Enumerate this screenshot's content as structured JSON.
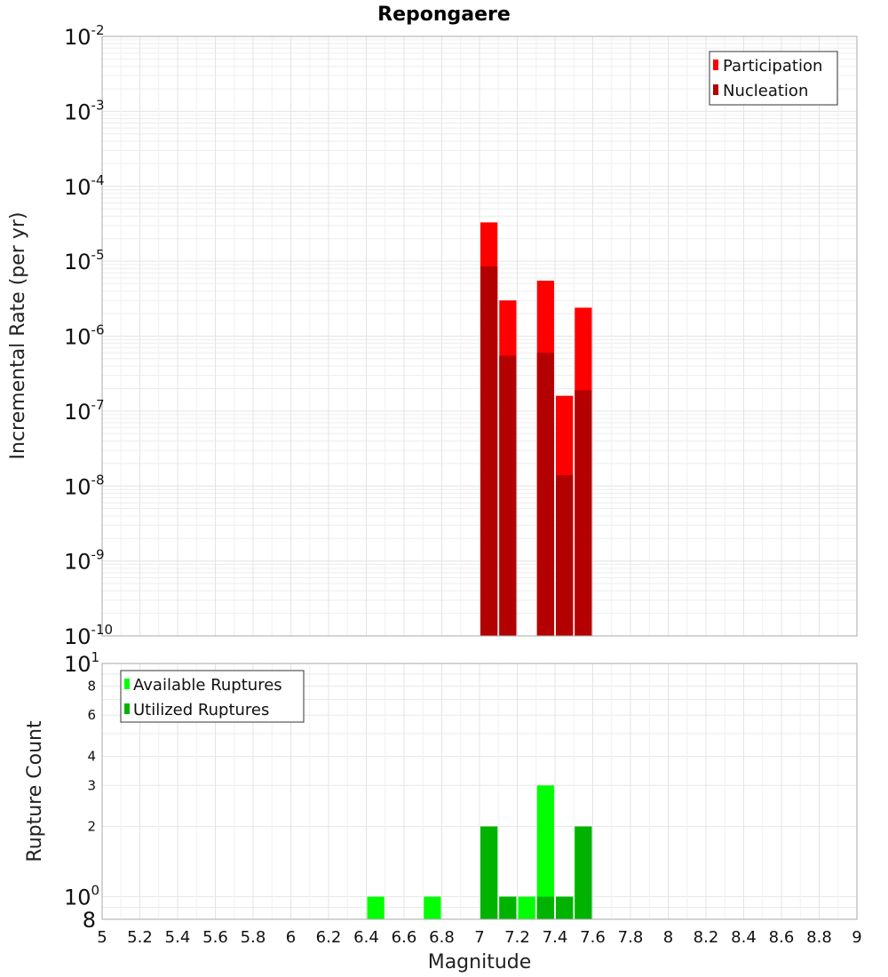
{
  "chart_data": [
    {
      "type": "bar",
      "title": "Repongaere",
      "ylabel": "Incremental Rate (per yr)",
      "yscale": "log",
      "ylim": [
        1e-10,
        0.01
      ],
      "y_tick_exponents": [
        -2,
        -3,
        -4,
        -5,
        -6,
        -7,
        -8,
        -9,
        -10
      ],
      "grid": true,
      "legend_position": "top-right",
      "series": [
        {
          "name": "Participation",
          "color": "#ff0000",
          "x": [
            7.05,
            7.15,
            7.35,
            7.45,
            7.55
          ],
          "values": [
            3.3e-05,
            3e-06,
            5.5e-06,
            1.6e-07,
            2.4e-06
          ]
        },
        {
          "name": "Nucleation",
          "color": "#b30000",
          "x": [
            7.05,
            7.15,
            7.35,
            7.45,
            7.55
          ],
          "values": [
            8.5e-06,
            5.5e-07,
            6e-07,
            1.4e-08,
            1.9e-07
          ]
        }
      ]
    },
    {
      "type": "bar",
      "ylabel": "Rupture Count",
      "xlabel": "Magnitude",
      "yscale": "log",
      "ylim": [
        0.8,
        10
      ],
      "y_tick_major": {
        "base": "10",
        "exps": [
          "1",
          "0"
        ]
      },
      "y_tick_minor": [
        "8",
        "6",
        "4",
        "3",
        "2"
      ],
      "y_tick_bottom": "8",
      "x_ticks": [
        "5",
        "5.2",
        "5.4",
        "5.6",
        "5.8",
        "6",
        "6.2",
        "6.4",
        "6.6",
        "6.8",
        "7",
        "7.2",
        "7.4",
        "7.6",
        "7.8",
        "8",
        "8.2",
        "8.4",
        "8.6",
        "8.8",
        "9"
      ],
      "xlim": [
        5,
        9
      ],
      "grid": true,
      "legend_position": "top-left",
      "series": [
        {
          "name": "Available Ruptures",
          "color": "#00ff00",
          "x": [
            6.45,
            6.75,
            7.05,
            7.15,
            7.25,
            7.35,
            7.45,
            7.55
          ],
          "values": [
            1,
            1,
            2,
            1,
            1,
            3,
            1,
            2
          ]
        },
        {
          "name": "Utilized Ruptures",
          "color": "#00b300",
          "x": [
            7.05,
            7.15,
            7.35,
            7.45,
            7.55
          ],
          "values": [
            2,
            1,
            1,
            1,
            2
          ]
        }
      ]
    }
  ]
}
